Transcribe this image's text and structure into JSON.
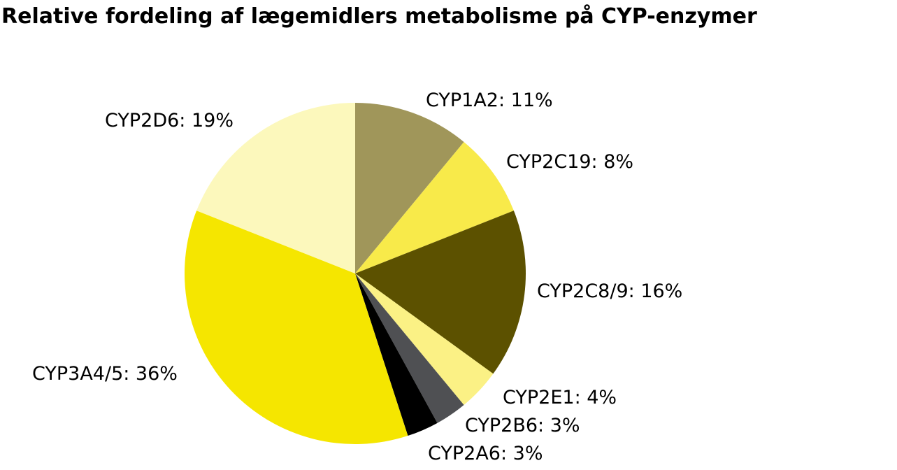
{
  "chart_data": {
    "type": "pie",
    "title": "Relative fordeling af lægemidlers metabolisme på CYP-enzymer",
    "slices": [
      {
        "name": "CYP1A2",
        "value": 11,
        "label": "CYP1A2: 11%",
        "color": "#a0965a"
      },
      {
        "name": "CYP2C19",
        "value": 8,
        "label": "CYP2C19: 8%",
        "color": "#f8ea4a"
      },
      {
        "name": "CYP2C8/9",
        "value": 16,
        "label": "CYP2C8/9: 16%",
        "color": "#5c5100"
      },
      {
        "name": "CYP2E1",
        "value": 4,
        "label": "CYP2E1: 4%",
        "color": "#fbf185"
      },
      {
        "name": "CYP2B6",
        "value": 3,
        "label": "CYP2B6: 3%",
        "color": "#4f5053"
      },
      {
        "name": "CYP2A6",
        "value": 3,
        "label": "CYP2A6: 3%",
        "color": "#000000"
      },
      {
        "name": "CYP3A4/5",
        "value": 36,
        "label": "CYP3A4/5: 36%",
        "color": "#f5e600"
      },
      {
        "name": "CYP2D6",
        "value": 19,
        "label": "CYP2D6: 19%",
        "color": "#fcf8bc"
      }
    ],
    "start_angle": "12 o'clock",
    "direction": "clockwise",
    "legend": "none"
  }
}
